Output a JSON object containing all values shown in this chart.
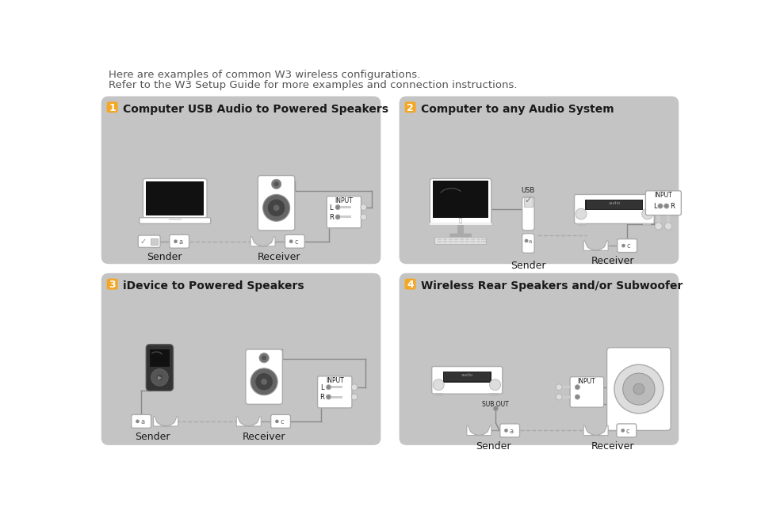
{
  "bg_color": "#ffffff",
  "panel_bg": "#c4c4c4",
  "gold": "#f5a623",
  "white": "#ffffff",
  "text_dark": "#1a1a1a",
  "text_gray": "#555555",
  "intro_line1": "Here are examples of common W3 wireless configurations.",
  "intro_line2": "Refer to the W3 Setup Guide for more examples and connection instructions.",
  "panel1_title": "Computer USB Audio to Powered Speakers",
  "panel2_title": "Computer to any Audio System",
  "panel3_title": "iDevice to Powered Speakers",
  "panel4_title": "Wireless Rear Speakers and/or Subwoofer"
}
